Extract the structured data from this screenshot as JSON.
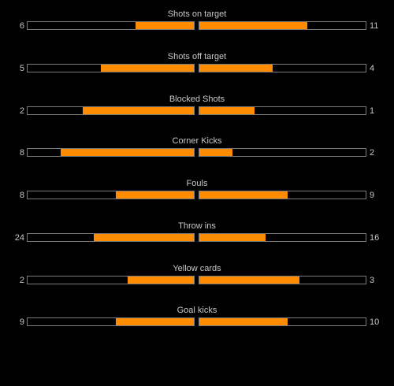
{
  "colors": {
    "fill": "#ff8c00",
    "background": "#000000",
    "border": "#7a7a7a",
    "text": "#c8c8c8"
  },
  "stats": [
    {
      "label": "Shots on target",
      "home": "6",
      "away": "11",
      "home_fraction": 0.35,
      "away_fraction": 0.65
    },
    {
      "label": "Shots off target",
      "home": "5",
      "away": "4",
      "home_fraction": 0.56,
      "away_fraction": 0.44
    },
    {
      "label": "Blocked Shots",
      "home": "2",
      "away": "1",
      "home_fraction": 0.67,
      "away_fraction": 0.33
    },
    {
      "label": "Corner Kicks",
      "home": "8",
      "away": "2",
      "home_fraction": 0.8,
      "away_fraction": 0.2
    },
    {
      "label": "Fouls",
      "home": "8",
      "away": "9",
      "home_fraction": 0.47,
      "away_fraction": 0.53
    },
    {
      "label": "Throw ins",
      "home": "24",
      "away": "16",
      "home_fraction": 0.6,
      "away_fraction": 0.4
    },
    {
      "label": "Yellow cards",
      "home": "2",
      "away": "3",
      "home_fraction": 0.4,
      "away_fraction": 0.6
    },
    {
      "label": "Goal kicks",
      "home": "9",
      "away": "10",
      "home_fraction": 0.47,
      "away_fraction": 0.53
    }
  ]
}
